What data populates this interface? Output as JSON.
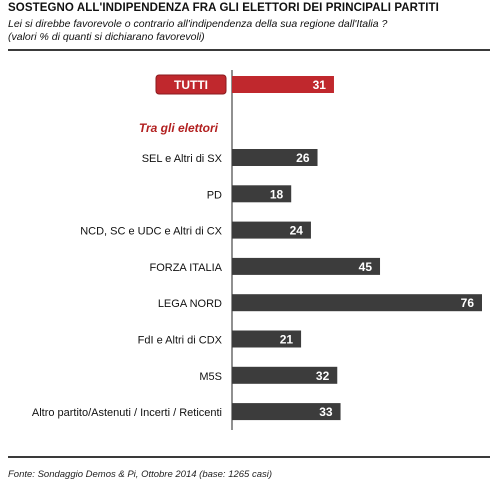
{
  "header": {
    "title": "SOSTEGNO ALL'INDIPENDENZA FRA GLI ELETTORI DEI PRINCIPALI PARTITI",
    "question": "Lei si direbbe favorevole o contrario all'indipendenza della sua regione dall'Italia ?",
    "note": "(valori % di quanti si dichiarano favorevoli)"
  },
  "colors": {
    "total_bar": "#c0282d",
    "party_bar": "#3c3c3c",
    "section_label": "#b22020"
  },
  "chart_data": {
    "type": "bar",
    "orientation": "horizontal",
    "xlim": [
      0,
      76
    ],
    "total": {
      "label": "TUTTI",
      "value": 31
    },
    "section_label": "Tra gli elettori",
    "categories": [
      "SEL e Altri di SX",
      "PD",
      "NCD, SC e UDC e Altri di CX",
      "FORZA ITALIA",
      "LEGA NORD",
      "FdI e Altri di CDX",
      "M5S",
      "Altro partito/Astenuti / Incerti / Reticenti"
    ],
    "values": [
      26,
      18,
      24,
      45,
      76,
      21,
      32,
      33
    ]
  },
  "footer": {
    "source": "Fonte: Sondaggio Demos & Pi, Ottobre 2014 (base: 1265 casi)"
  }
}
